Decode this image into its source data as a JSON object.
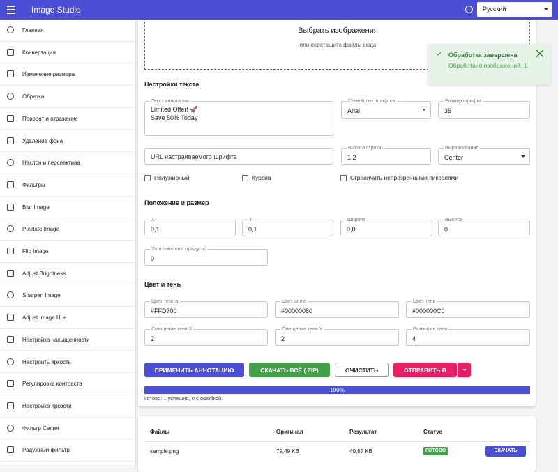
{
  "app_bar": {
    "title": "Image Studio",
    "language": "Русский"
  },
  "sidebar": {
    "items": [
      "Главная",
      "Конвертация",
      "Изменение размера",
      "Обрезка",
      "Поворот и отражение",
      "Удаление фона",
      "Наклон и перспектива",
      "Фильтры",
      "Blur Image",
      "Pixelate Image",
      "Flip Image",
      "Adjust Brightness",
      "Sharpen Image",
      "Adjust Image Hue",
      "Настройка насыщенности",
      "Настроить яркость",
      "Регулировка контраста",
      "Настройка яркости",
      "Фильтр Сепия",
      "Радужный фильтр"
    ]
  },
  "dropzone": {
    "title": "Выбрать изображения",
    "hint": "или перетащите файлы сюда"
  },
  "text_settings": {
    "heading": "Настройки текста",
    "fields": [
      {
        "label": "Текст аннотации",
        "value": "Limited Offer! 🚀\nSave 50% Today"
      },
      {
        "label": "Семейство шрифтов",
        "value": "Arial"
      },
      {
        "label": "Размер шрифта",
        "value": "36"
      },
      {
        "placeholder": "URL настраиваемого шрифта"
      },
      {
        "label": "Высота строки",
        "value": "1,2"
      },
      {
        "label": "Выравнивание",
        "value": "Center"
      }
    ],
    "checkboxes": [
      "Полужирный",
      "Курсив",
      "Ограничить непрозрачными пикселями"
    ]
  },
  "position": {
    "heading": "Положение и размер",
    "fields": [
      {
        "label": "X",
        "value": "0,1"
      },
      {
        "label": "Y",
        "value": "0,1"
      },
      {
        "label": "Ширина",
        "value": "0,8"
      },
      {
        "label": "Высота",
        "value": "0"
      },
      {
        "label": "Угол поворота (градусы)",
        "value": "0"
      }
    ]
  },
  "color": {
    "heading": "Цвет и тень",
    "fields": [
      {
        "label": "Цвет текста",
        "value": "#FFD700"
      },
      {
        "label": "Цвет фона",
        "value": "#00000080"
      },
      {
        "label": "Цвет тени",
        "value": "#000000C0"
      },
      {
        "label": "Смещение тени X",
        "value": "2"
      },
      {
        "label": "Смещение тени Y",
        "value": "2"
      },
      {
        "label": "Размытие тени",
        "value": "4"
      }
    ]
  },
  "actions": {
    "apply": "ПРИМЕНИТЬ АННОТАЦИЮ",
    "download_zip": "СКАЧАТЬ ВСЁ (.ZIP)",
    "clear": "ОЧИСТИТЬ",
    "send": "ОТПРАВИТЬ В"
  },
  "progress": {
    "value": 100,
    "label": "100%",
    "status": "Готово: 1 успешно, 0 с ошибкой."
  },
  "table": {
    "headers": [
      "Файлы",
      "Оригинал",
      "Результат",
      "Статус"
    ],
    "rows": [
      [
        "sample.png",
        "79,49 KB",
        "40,87 KB",
        "ГОТОВО"
      ]
    ],
    "download": "СКАЧАТЬ"
  },
  "toast": {
    "title": "Обработка завершена",
    "message": "Обработано изображений: 1."
  }
}
